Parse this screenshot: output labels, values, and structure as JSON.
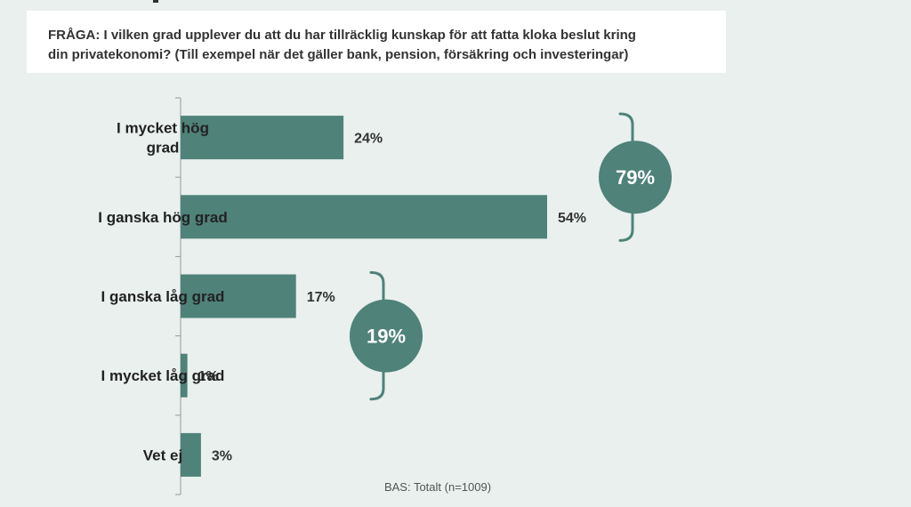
{
  "question": {
    "line1": "FRÅGA: I vilken grad upplever du att du har tillräcklig kunskap för att fatta kloka beslut kring",
    "line2": "din privatekonomi? (Till exempel när det gäller bank, pension, försäkring och investeringar)"
  },
  "base_note": "BAS: Totalt (n=1009)",
  "colors": {
    "bar": "#4f8279",
    "bubble": "#4f8279",
    "bracket": "#4f8279",
    "axis": "#999999"
  },
  "chart_data": {
    "type": "bar",
    "orientation": "horizontal",
    "categories": [
      [
        "I mycket hög",
        "grad"
      ],
      [
        "I ganska hög grad"
      ],
      [
        "I ganska låg grad"
      ],
      [
        "I mycket låg grad"
      ],
      [
        "Vet ej"
      ]
    ],
    "values": [
      24,
      54,
      17,
      1,
      3
    ],
    "value_labels": [
      "24%",
      "54%",
      "17%",
      "1%",
      "3%"
    ],
    "xlim": [
      0,
      60
    ],
    "groups": [
      {
        "label": "79%",
        "from": 0,
        "to": 1
      },
      {
        "label": "19%",
        "from": 2,
        "to": 3
      }
    ]
  }
}
